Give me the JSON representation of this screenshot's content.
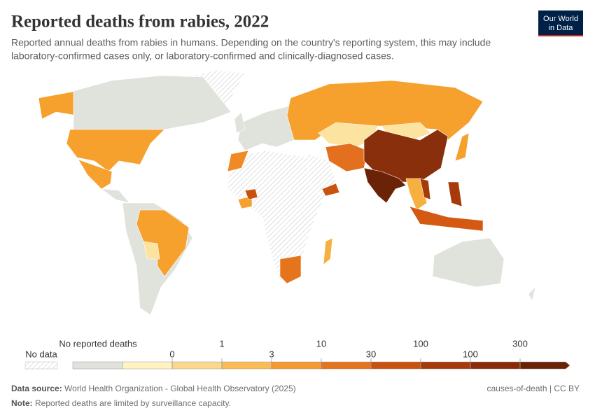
{
  "header": {
    "title": "Reported deaths from rabies, 2022",
    "subtitle_lines": [
      "Reported annual deaths from rabies in humans. Depending on the country's reporting system, this may include",
      "laboratory-confirmed cases only, or laboratory-confirmed and clinically-diagnosed cases."
    ],
    "logo_lines": [
      "Our World",
      "in Data"
    ]
  },
  "legend": {
    "no_data": "No data",
    "no_reported": "No reported deaths",
    "ticks": [
      "0",
      "1",
      "3",
      "10",
      "30",
      "100",
      "100",
      "300"
    ]
  },
  "footer": {
    "source_label": "Data source:",
    "source": "World Health Organization - Global Health Observatory (2025)",
    "note_label": "Note:",
    "note": "Reported deaths are limited by surveillance capacity.",
    "license": "causes-of-death | CC BY"
  }
}
